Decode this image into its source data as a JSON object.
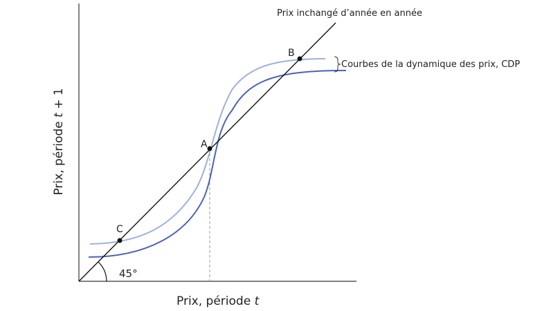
{
  "diagram": {
    "y_axis_label": {
      "before": "Prix, période ",
      "variable": "t",
      "after": " + 1"
    },
    "x_axis_label": {
      "before": "Prix, période ",
      "variable": "t"
    },
    "line_label": "Prix inchangé d’année en année",
    "curves_label": "Courbes de la dynamique des prix, CDP",
    "points": {
      "a": "A",
      "b": "B",
      "c": "C"
    },
    "angle_label": "45°"
  }
}
